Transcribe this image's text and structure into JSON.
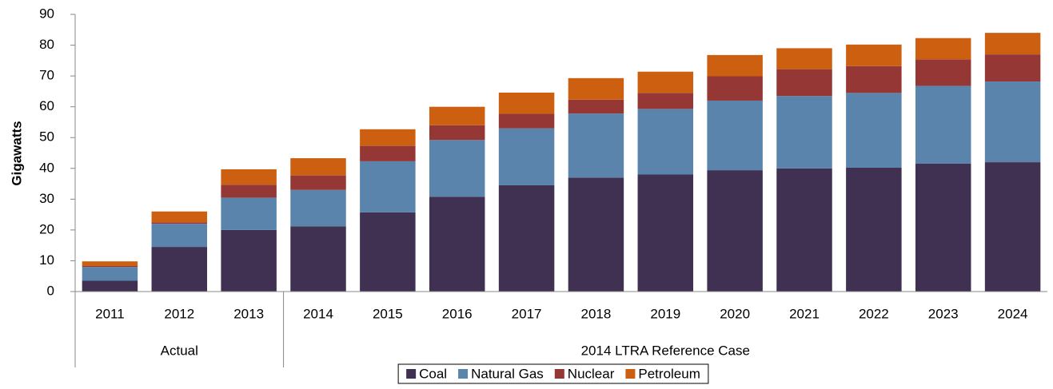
{
  "chart_data": {
    "type": "stacked_bar",
    "y_label": "Gigawatts",
    "categories": [
      "2011",
      "2012",
      "2013",
      "2014",
      "2015",
      "2016",
      "2017",
      "2018",
      "2019",
      "2020",
      "2021",
      "2022",
      "2023",
      "2024"
    ],
    "groups": [
      {
        "label": "Actual",
        "count": 3
      },
      {
        "label": "2014 LTRA Reference Case",
        "count": 11
      }
    ],
    "series": [
      {
        "name": "Coal",
        "color": "#403152",
        "values": [
          3.5,
          14.5,
          20,
          21.2,
          25.7,
          30.8,
          34.5,
          37,
          38,
          39.4,
          40,
          40.2,
          41.5,
          42
        ]
      },
      {
        "name": "Natural Gas",
        "color": "#5b84ad",
        "values": [
          4.5,
          7.5,
          10.5,
          11.8,
          16.6,
          18.4,
          18.5,
          20.8,
          21.3,
          22.6,
          23.5,
          24.3,
          25.3,
          26.2
        ]
      },
      {
        "name": "Nuclear",
        "color": "#953735",
        "values": [
          0.3,
          0.5,
          4.2,
          4.7,
          5,
          4.8,
          4.7,
          4.5,
          5.2,
          7.9,
          8.7,
          8.7,
          8.6,
          8.8
        ]
      },
      {
        "name": "Petroleum",
        "color": "#cc6010",
        "values": [
          1.5,
          3.5,
          5,
          5.6,
          5.4,
          6,
          6.9,
          7,
          6.9,
          6.9,
          6.8,
          7,
          6.9,
          7
        ]
      }
    ],
    "ylim": [
      0,
      90
    ],
    "yticks": [
      0,
      10,
      20,
      30,
      40,
      50,
      60,
      70,
      80,
      90
    ],
    "grid": false,
    "legend": "bottom"
  }
}
